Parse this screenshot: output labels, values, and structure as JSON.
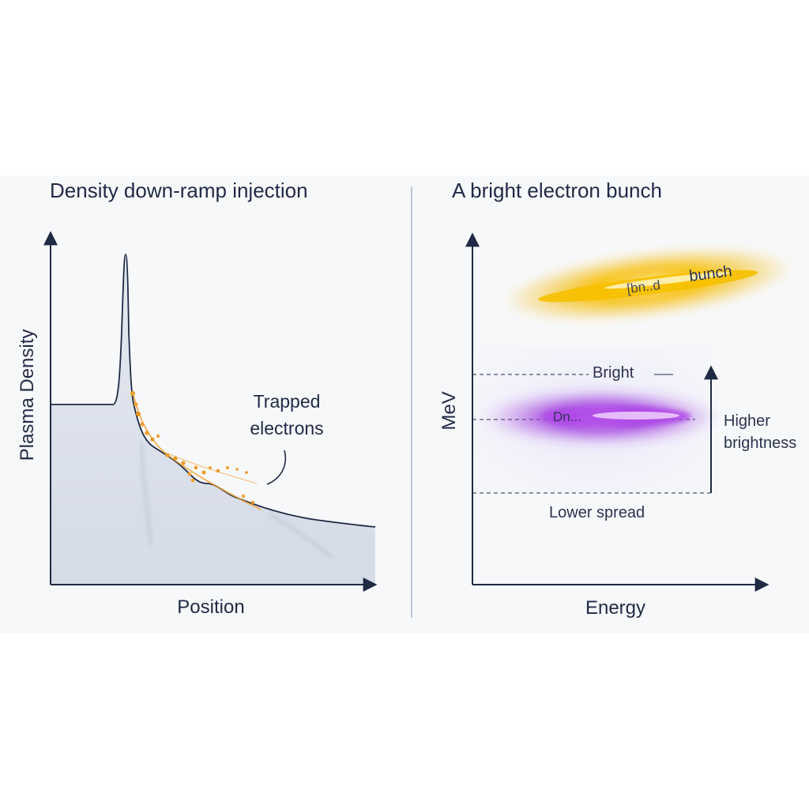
{
  "left_panel": {
    "title": "Density down-ramp injection",
    "y_axis_label": "Plasma Density",
    "x_axis_label": "Position",
    "annotation_line1": "Trapped",
    "annotation_line2": "electrons"
  },
  "right_panel": {
    "title": "A bright electron bunch",
    "y_axis_label": "MeV",
    "x_axis_label": "Energy",
    "bunch_label": "bunch",
    "bunch_inner_label": "[bn..d",
    "bright_label": "Bright",
    "purple_inner_label": "Dn...",
    "higher_line1": "Higher",
    "higher_line2": "brightness",
    "lower_spread_label": "Lower spread"
  },
  "colors": {
    "axis": "#1f2a44",
    "fill": "#dde3ee",
    "electron": "#f0a030",
    "beam_yellow": "#f5b800",
    "beam_purple": "#9b30d8"
  }
}
